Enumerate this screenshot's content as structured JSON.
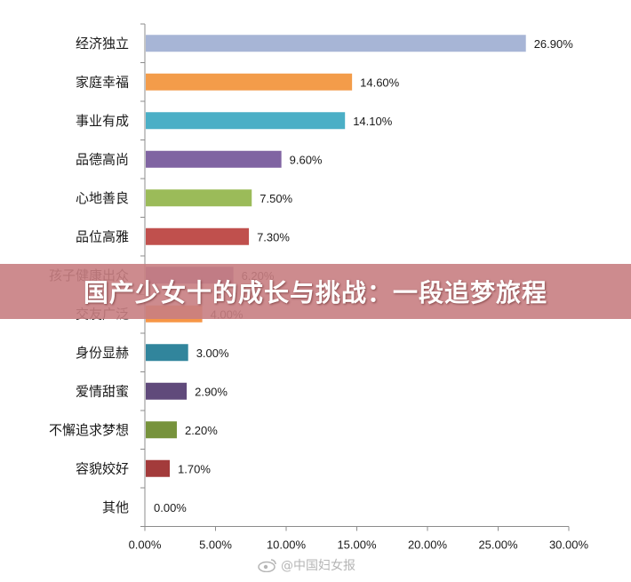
{
  "banner": {
    "title": "国产少女十的成长与挑战：一段追梦旅程"
  },
  "watermark": {
    "text": "@中国妇女报",
    "icon": "weibo-icon"
  },
  "chart_data": {
    "type": "bar",
    "orientation": "horizontal",
    "categories": [
      "经济独立",
      "家庭幸福",
      "事业有成",
      "品德高尚",
      "心地善良",
      "品位高雅",
      "孩子健康出众",
      "交友广泛",
      "身份显赫",
      "爱情甜蜜",
      "不懈追求梦想",
      "容貌姣好",
      "其他"
    ],
    "values": [
      26.9,
      14.6,
      14.1,
      9.6,
      7.5,
      7.3,
      6.2,
      4.0,
      3.0,
      2.9,
      2.2,
      1.7,
      0.0
    ],
    "value_labels": [
      "26.90%",
      "14.60%",
      "14.10%",
      "9.60%",
      "7.50%",
      "7.30%",
      "6.20%",
      "4.00%",
      "3.00%",
      "2.90%",
      "2.20%",
      "1.70%",
      "0.00%"
    ],
    "colors": [
      "#a7b5d6",
      "#f39c4a",
      "#4bafc6",
      "#8064a2",
      "#9bbb59",
      "#c0504d",
      "#8064a2",
      "#f79646",
      "#31859c",
      "#604a7b",
      "#77933c",
      "#a33b3b",
      "#4f81bd"
    ],
    "xlim": [
      0,
      30
    ],
    "xticks": [
      "0.00%",
      "5.00%",
      "10.00%",
      "15.00%",
      "20.00%",
      "25.00%",
      "30.00%"
    ],
    "title": "",
    "xlabel": "",
    "ylabel": "",
    "grid": false,
    "legend": "none"
  }
}
